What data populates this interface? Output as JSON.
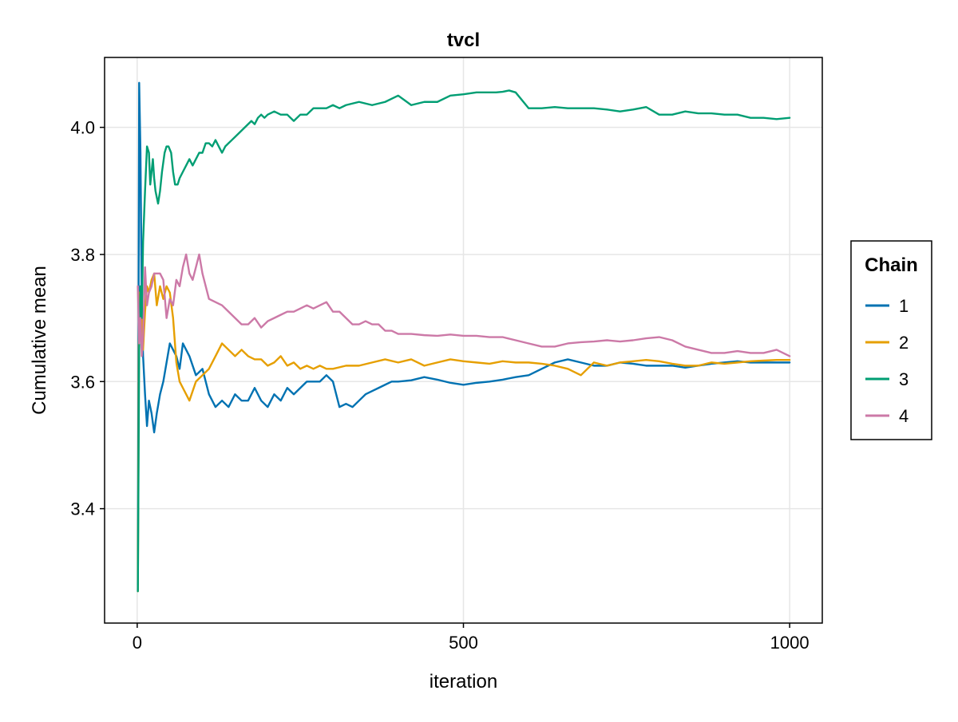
{
  "chart_data": {
    "type": "line",
    "title": "tvcl",
    "xlabel": "iteration",
    "ylabel": "Cumulative mean",
    "xlim": [
      -50,
      1050
    ],
    "ylim": [
      3.22,
      4.11
    ],
    "xticks": [
      0,
      500,
      1000
    ],
    "xtick_labels": [
      "0",
      "500",
      "1000"
    ],
    "yticks": [
      3.4,
      3.6,
      3.8,
      4.0
    ],
    "ytick_labels": [
      "3.4",
      "3.6",
      "3.8",
      "4.0"
    ],
    "grid": true,
    "legend": {
      "title": "Chain",
      "placement": "right"
    },
    "series": [
      {
        "name": "1",
        "color": "#0072b2",
        "x": [
          1,
          3,
          5,
          7,
          9,
          12,
          15,
          18,
          22,
          26,
          30,
          35,
          40,
          45,
          50,
          55,
          60,
          65,
          70,
          75,
          80,
          90,
          100,
          110,
          120,
          130,
          140,
          150,
          160,
          170,
          180,
          190,
          200,
          210,
          220,
          230,
          240,
          250,
          260,
          270,
          280,
          290,
          300,
          310,
          320,
          330,
          340,
          350,
          360,
          370,
          380,
          390,
          400,
          420,
          440,
          460,
          480,
          500,
          520,
          540,
          560,
          580,
          600,
          620,
          640,
          660,
          680,
          700,
          720,
          740,
          760,
          780,
          800,
          820,
          840,
          860,
          880,
          900,
          920,
          940,
          960,
          980,
          1000
        ],
        "y": [
          3.28,
          4.07,
          3.96,
          3.72,
          3.64,
          3.58,
          3.53,
          3.57,
          3.55,
          3.52,
          3.55,
          3.58,
          3.6,
          3.63,
          3.66,
          3.65,
          3.64,
          3.62,
          3.66,
          3.65,
          3.64,
          3.61,
          3.62,
          3.58,
          3.56,
          3.57,
          3.56,
          3.58,
          3.57,
          3.57,
          3.59,
          3.57,
          3.56,
          3.58,
          3.57,
          3.59,
          3.58,
          3.59,
          3.6,
          3.6,
          3.6,
          3.61,
          3.6,
          3.56,
          3.565,
          3.56,
          3.57,
          3.58,
          3.585,
          3.59,
          3.595,
          3.6,
          3.6,
          3.602,
          3.607,
          3.603,
          3.598,
          3.595,
          3.598,
          3.6,
          3.603,
          3.607,
          3.61,
          3.62,
          3.63,
          3.635,
          3.63,
          3.625,
          3.625,
          3.63,
          3.628,
          3.625,
          3.625,
          3.625,
          3.622,
          3.625,
          3.628,
          3.63,
          3.632,
          3.63,
          3.63,
          3.63,
          3.63
        ]
      },
      {
        "name": "2",
        "color": "#e69f00",
        "x": [
          1,
          3,
          5,
          7,
          9,
          12,
          15,
          18,
          22,
          26,
          30,
          35,
          40,
          45,
          50,
          55,
          60,
          65,
          70,
          75,
          80,
          90,
          100,
          110,
          120,
          130,
          140,
          150,
          160,
          170,
          180,
          190,
          200,
          210,
          220,
          230,
          240,
          250,
          260,
          270,
          280,
          290,
          300,
          320,
          340,
          360,
          380,
          400,
          420,
          440,
          460,
          480,
          500,
          520,
          540,
          560,
          580,
          600,
          620,
          640,
          660,
          680,
          700,
          720,
          740,
          760,
          780,
          800,
          820,
          840,
          860,
          880,
          900,
          920,
          940,
          960,
          980,
          1000
        ],
        "y": [
          3.27,
          3.74,
          3.72,
          3.7,
          3.65,
          3.71,
          3.75,
          3.74,
          3.76,
          3.77,
          3.72,
          3.75,
          3.73,
          3.75,
          3.74,
          3.7,
          3.63,
          3.6,
          3.59,
          3.58,
          3.57,
          3.6,
          3.61,
          3.62,
          3.64,
          3.66,
          3.65,
          3.64,
          3.65,
          3.64,
          3.635,
          3.635,
          3.625,
          3.63,
          3.64,
          3.625,
          3.63,
          3.62,
          3.625,
          3.62,
          3.625,
          3.62,
          3.62,
          3.625,
          3.625,
          3.63,
          3.635,
          3.63,
          3.635,
          3.625,
          3.63,
          3.635,
          3.632,
          3.63,
          3.628,
          3.632,
          3.63,
          3.63,
          3.628,
          3.625,
          3.62,
          3.61,
          3.63,
          3.625,
          3.63,
          3.632,
          3.634,
          3.632,
          3.628,
          3.625,
          3.625,
          3.63,
          3.628,
          3.63,
          3.632,
          3.633,
          3.634,
          3.634
        ]
      },
      {
        "name": "3",
        "color": "#009e73",
        "x": [
          1,
          3,
          5,
          7,
          9,
          12,
          15,
          18,
          20,
          22,
          24,
          26,
          28,
          30,
          32,
          35,
          38,
          42,
          45,
          48,
          52,
          55,
          58,
          62,
          65,
          70,
          75,
          80,
          85,
          90,
          95,
          100,
          105,
          110,
          115,
          120,
          125,
          130,
          135,
          140,
          145,
          150,
          155,
          160,
          165,
          170,
          175,
          180,
          185,
          190,
          195,
          200,
          210,
          220,
          230,
          240,
          250,
          260,
          270,
          280,
          290,
          300,
          310,
          320,
          340,
          360,
          380,
          400,
          420,
          440,
          460,
          480,
          500,
          520,
          540,
          550,
          560,
          570,
          580,
          600,
          620,
          640,
          660,
          680,
          700,
          720,
          740,
          760,
          780,
          800,
          820,
          840,
          860,
          880,
          900,
          920,
          940,
          960,
          980,
          1000
        ],
        "y": [
          3.27,
          3.65,
          3.75,
          3.7,
          3.82,
          3.9,
          3.97,
          3.96,
          3.91,
          3.93,
          3.95,
          3.92,
          3.9,
          3.89,
          3.88,
          3.9,
          3.93,
          3.96,
          3.97,
          3.97,
          3.96,
          3.93,
          3.91,
          3.91,
          3.92,
          3.93,
          3.94,
          3.95,
          3.94,
          3.95,
          3.96,
          3.96,
          3.975,
          3.975,
          3.97,
          3.98,
          3.97,
          3.96,
          3.97,
          3.975,
          3.98,
          3.985,
          3.99,
          3.995,
          4.0,
          4.005,
          4.01,
          4.005,
          4.015,
          4.02,
          4.015,
          4.02,
          4.025,
          4.02,
          4.02,
          4.01,
          4.02,
          4.02,
          4.03,
          4.03,
          4.03,
          4.035,
          4.03,
          4.035,
          4.04,
          4.035,
          4.04,
          4.05,
          4.035,
          4.04,
          4.04,
          4.05,
          4.052,
          4.055,
          4.055,
          4.055,
          4.056,
          4.058,
          4.055,
          4.03,
          4.03,
          4.032,
          4.03,
          4.03,
          4.03,
          4.028,
          4.025,
          4.028,
          4.032,
          4.02,
          4.02,
          4.025,
          4.022,
          4.022,
          4.02,
          4.02,
          4.015,
          4.015,
          4.013,
          4.015
        ]
      },
      {
        "name": "4",
        "color": "#cc79a7",
        "x": [
          1,
          3,
          5,
          7,
          9,
          12,
          15,
          18,
          22,
          26,
          30,
          35,
          40,
          45,
          50,
          55,
          60,
          65,
          70,
          75,
          80,
          85,
          90,
          95,
          100,
          110,
          120,
          130,
          140,
          150,
          160,
          170,
          180,
          190,
          200,
          210,
          220,
          230,
          240,
          250,
          260,
          270,
          280,
          290,
          300,
          310,
          320,
          330,
          340,
          350,
          360,
          370,
          380,
          390,
          400,
          420,
          440,
          460,
          480,
          500,
          520,
          540,
          560,
          580,
          600,
          620,
          640,
          660,
          680,
          700,
          720,
          740,
          760,
          780,
          800,
          820,
          840,
          860,
          880,
          900,
          920,
          940,
          960,
          980,
          1000
        ],
        "y": [
          3.75,
          3.66,
          3.7,
          3.64,
          3.67,
          3.78,
          3.72,
          3.74,
          3.75,
          3.77,
          3.77,
          3.77,
          3.76,
          3.7,
          3.73,
          3.72,
          3.76,
          3.75,
          3.78,
          3.8,
          3.77,
          3.76,
          3.78,
          3.8,
          3.77,
          3.73,
          3.725,
          3.72,
          3.71,
          3.7,
          3.69,
          3.69,
          3.7,
          3.685,
          3.695,
          3.7,
          3.705,
          3.71,
          3.71,
          3.715,
          3.72,
          3.715,
          3.72,
          3.725,
          3.71,
          3.71,
          3.7,
          3.69,
          3.69,
          3.695,
          3.69,
          3.69,
          3.68,
          3.68,
          3.675,
          3.675,
          3.673,
          3.672,
          3.674,
          3.672,
          3.672,
          3.67,
          3.67,
          3.665,
          3.66,
          3.655,
          3.655,
          3.66,
          3.662,
          3.663,
          3.665,
          3.663,
          3.665,
          3.668,
          3.67,
          3.665,
          3.655,
          3.65,
          3.645,
          3.645,
          3.648,
          3.645,
          3.645,
          3.65,
          3.64
        ]
      }
    ]
  }
}
